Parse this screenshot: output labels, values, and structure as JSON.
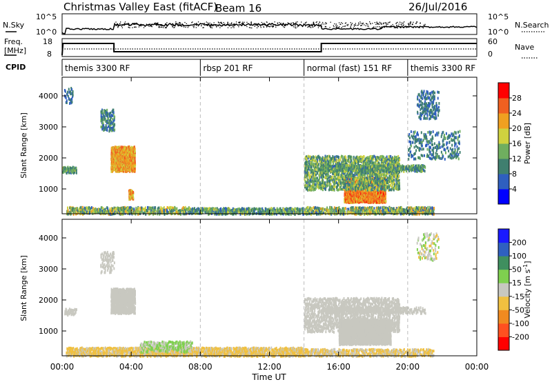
{
  "header": {
    "title": "Christmas Valley East (fitACF)",
    "beam": "Beam 16",
    "date": "26/Jul/2016"
  },
  "noise_panel": {
    "left_label": "N.Sky",
    "right_label": "N.Search",
    "left_ticks": [
      "10^5",
      "10^0"
    ],
    "right_ticks": [
      "10^5",
      "10^0"
    ]
  },
  "freq_panel": {
    "left_label_1": "Freq.",
    "left_label_2": "[MHz]",
    "right_label": "Nave",
    "left_ticks": [
      "18",
      "8"
    ],
    "right_ticks": [
      "60",
      "0"
    ]
  },
  "cpid": {
    "label": "CPID",
    "segments": [
      {
        "text": "themis 3300 RF",
        "start_hour": 0
      },
      {
        "text": "rbsp 201 RF",
        "start_hour": 8
      },
      {
        "text": "normal (fast) 151 RF",
        "start_hour": 14
      },
      {
        "text": "themis 3300 RF",
        "start_hour": 20
      }
    ]
  },
  "xaxis": {
    "label": "Time UT",
    "ticks": [
      "00:00",
      "04:00",
      "08:00",
      "12:00",
      "16:00",
      "20:00",
      "00:00"
    ]
  },
  "colors": {
    "power_scale": [
      "#0000ff",
      "#2f5fbf",
      "#3f7f6f",
      "#6fae5f",
      "#cfd23f",
      "#f0a020",
      "#f06020",
      "#ff0000"
    ],
    "velocity_scale": [
      "#1a1aff",
      "#2f60c0",
      "#3f8f5f",
      "#7fd04f",
      "#c8c8c0",
      "#f0c040",
      "#f08a20",
      "#ff5020",
      "#ff0000"
    ]
  },
  "chart_data": [
    {
      "type": "heatmap",
      "name": "power",
      "ylabel": "Slant Range [km]",
      "yticks": [
        "4000",
        "3000",
        "2000",
        "1000"
      ],
      "ylim": [
        200,
        4600
      ],
      "xlim_hours": [
        0,
        24
      ],
      "colorbar": {
        "label": "Power [dB]",
        "ticks": [
          "28",
          "24",
          "20",
          "16",
          "12",
          "8",
          "4"
        ],
        "range": [
          0,
          32
        ]
      },
      "regions": [
        {
          "t0": 0.2,
          "t1": 7.3,
          "r0": 200,
          "r1": 450,
          "val": 14,
          "spread": 8,
          "density": 0.35
        },
        {
          "t0": 7.3,
          "t1": 14,
          "r0": 200,
          "r1": 420,
          "val": 12,
          "spread": 6,
          "density": 0.45
        },
        {
          "t0": 14,
          "t1": 21.5,
          "r0": 200,
          "r1": 450,
          "val": 14,
          "spread": 8,
          "density": 0.4
        },
        {
          "t0": 2.8,
          "t1": 4.2,
          "r0": 1600,
          "r1": 2400,
          "val": 22,
          "spread": 5,
          "density": 0.75
        },
        {
          "t0": 16.3,
          "t1": 18.7,
          "r0": 600,
          "r1": 1400,
          "val": 24,
          "spread": 5,
          "density": 0.8
        },
        {
          "t0": 14,
          "t1": 19.5,
          "r0": 1000,
          "r1": 2100,
          "val": 13,
          "spread": 6,
          "density": 0.35
        },
        {
          "t0": 15,
          "t1": 21,
          "r0": 1600,
          "r1": 1800,
          "val": 12,
          "spread": 5,
          "density": 0.45
        },
        {
          "t0": 2.2,
          "t1": 3.0,
          "r0": 2900,
          "r1": 3600,
          "val": 10,
          "spread": 5,
          "density": 0.25
        },
        {
          "t0": 0.1,
          "t1": 0.6,
          "r0": 3800,
          "r1": 4300,
          "val": 8,
          "spread": 4,
          "density": 0.2
        },
        {
          "t0": 20.5,
          "t1": 21.8,
          "r0": 3300,
          "r1": 4200,
          "val": 8,
          "spread": 4,
          "density": 0.15
        },
        {
          "t0": 20,
          "t1": 23,
          "r0": 2000,
          "r1": 2900,
          "val": 9,
          "spread": 4,
          "density": 0.12
        },
        {
          "t0": 0,
          "t1": 0.8,
          "r0": 1550,
          "r1": 1750,
          "val": 12,
          "spread": 5,
          "density": 0.45
        },
        {
          "t0": 3.8,
          "t1": 4.1,
          "r0": 700,
          "r1": 1000,
          "val": 22,
          "spread": 6,
          "density": 0.5
        }
      ]
    },
    {
      "type": "heatmap",
      "name": "velocity",
      "ylabel": "Slant Range [km]",
      "yticks": [
        "4000",
        "3000",
        "2000",
        "1000"
      ],
      "ylim": [
        200,
        4600
      ],
      "xlim_hours": [
        0,
        24
      ],
      "colorbar": {
        "label": "Velocity [m s^-1]",
        "ticks": [
          "200",
          "100",
          "50",
          "15",
          "-15",
          "-50",
          "-100",
          "-200"
        ],
        "range": [
          -250,
          250
        ]
      },
      "regions": [
        {
          "t0": 0.2,
          "t1": 14,
          "r0": 200,
          "r1": 500,
          "val": -40,
          "spread": 30,
          "density": 0.45
        },
        {
          "t0": 14,
          "t1": 21.5,
          "r0": 200,
          "r1": 450,
          "val": -30,
          "spread": 40,
          "density": 0.35
        },
        {
          "t0": 2.8,
          "t1": 4.2,
          "r0": 1600,
          "r1": 2400,
          "val": 0,
          "spread": 8,
          "density": 0.7
        },
        {
          "t0": 16,
          "t1": 19,
          "r0": 600,
          "r1": 1400,
          "val": 0,
          "spread": 8,
          "density": 0.75
        },
        {
          "t0": 14,
          "t1": 19.5,
          "r0": 1000,
          "r1": 2100,
          "val": 0,
          "spread": 10,
          "density": 0.3
        },
        {
          "t0": 15,
          "t1": 21,
          "r0": 1600,
          "r1": 1800,
          "val": 0,
          "spread": 10,
          "density": 0.4
        },
        {
          "t0": 4.5,
          "t1": 7.5,
          "r0": 350,
          "r1": 700,
          "val": 30,
          "spread": 10,
          "density": 0.3
        },
        {
          "t0": 0.1,
          "t1": 0.8,
          "r0": 1550,
          "r1": 1750,
          "val": 0,
          "spread": 8,
          "density": 0.4
        },
        {
          "t0": 2.2,
          "t1": 3.0,
          "r0": 2900,
          "r1": 3600,
          "val": 0,
          "spread": 12,
          "density": 0.2
        },
        {
          "t0": 20.5,
          "t1": 21.8,
          "r0": 3300,
          "r1": 4200,
          "val": 0,
          "spread": 60,
          "density": 0.12
        }
      ]
    }
  ]
}
